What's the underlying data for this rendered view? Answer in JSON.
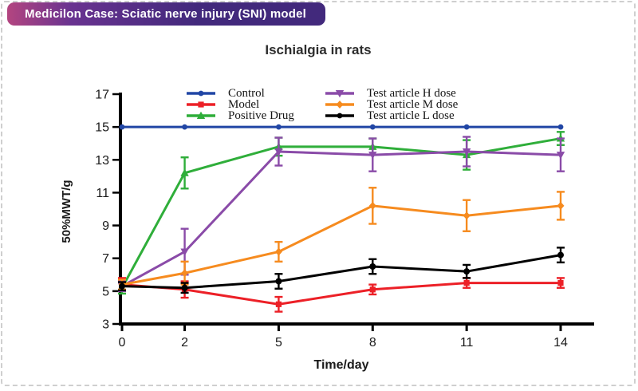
{
  "page": {
    "background": "#ffffff",
    "border_color": "#cfcfcf"
  },
  "header": {
    "badge_label": "Medicilon Case: Sciatic nerve injury (SNI) model",
    "gradient_left": "#b34580",
    "gradient_mid": "#693390",
    "gradient_right": "#42297c",
    "text_color": "#ffffff"
  },
  "chart_data": {
    "type": "line",
    "title": "Ischialgia in rats",
    "xlabel": "Time/day",
    "ylabel": "50%MWT/g",
    "x": [
      0,
      2,
      5,
      8,
      11,
      14
    ],
    "xticks": [
      0,
      2,
      5,
      8,
      11,
      14
    ],
    "yticks": [
      3,
      5,
      7,
      9,
      11,
      13,
      15,
      17
    ],
    "xlim": [
      0,
      14
    ],
    "ylim": [
      3,
      17
    ],
    "grid": false,
    "legend_position": "top-inside",
    "axis_color": "#000000",
    "tick_label_color": "#1a1a1a",
    "series": [
      {
        "name": "Control",
        "color": "#2146a5",
        "marker": "circle",
        "values": [
          15,
          15,
          15,
          15,
          15,
          15
        ],
        "errors": [
          0,
          0,
          0,
          0,
          0,
          0
        ]
      },
      {
        "name": "Model",
        "color": "#ec2027",
        "marker": "square",
        "values": [
          5.4,
          5.1,
          4.2,
          5.1,
          5.5,
          5.5
        ],
        "errors": [
          0.4,
          0.5,
          0.45,
          0.3,
          0.3,
          0.3
        ]
      },
      {
        "name": "Positive Drug",
        "color": "#2fae3a",
        "marker": "triangle-up",
        "values": [
          5.2,
          12.2,
          13.8,
          13.8,
          13.3,
          14.3
        ],
        "errors": [
          0.35,
          0.95,
          0.55,
          0.5,
          0.9,
          0.4
        ]
      },
      {
        "name": "Test article H dose",
        "color": "#8a4ba8",
        "marker": "triangle-down",
        "values": [
          5.3,
          7.4,
          13.5,
          13.3,
          13.5,
          13.3
        ],
        "errors": [
          0.3,
          1.4,
          0.85,
          1.0,
          0.9,
          1.0
        ]
      },
      {
        "name": "Test article M dose",
        "color": "#f68b1f",
        "marker": "diamond",
        "values": [
          5.4,
          6.1,
          7.4,
          10.2,
          9.6,
          10.2
        ],
        "errors": [
          0.3,
          0.7,
          0.6,
          1.1,
          0.95,
          0.85
        ]
      },
      {
        "name": "Test article L dose",
        "color": "#000000",
        "marker": "circle",
        "values": [
          5.3,
          5.2,
          5.6,
          6.5,
          6.2,
          7.2
        ],
        "errors": [
          0.25,
          0.3,
          0.45,
          0.45,
          0.4,
          0.45
        ]
      }
    ]
  }
}
